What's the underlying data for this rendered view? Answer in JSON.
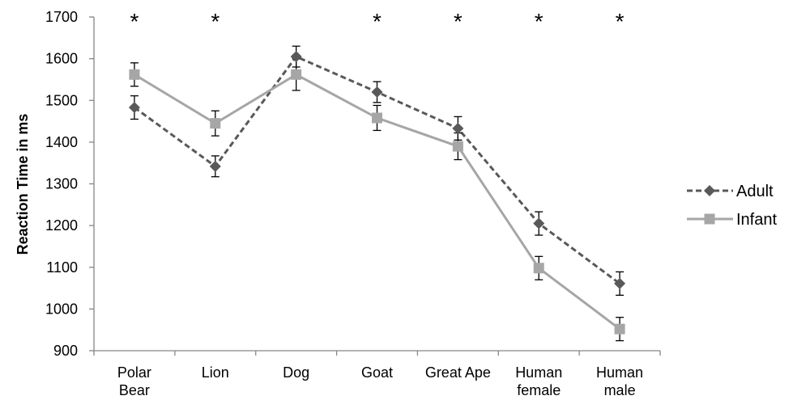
{
  "chart_data": {
    "type": "line",
    "title": "",
    "xlabel": "",
    "ylabel": "Reaction Time in ms",
    "ylim": [
      900,
      1700
    ],
    "yticks": [
      900,
      1000,
      1100,
      1200,
      1300,
      1400,
      1500,
      1600,
      1700
    ],
    "categories": [
      "Polar\nBear",
      "Lion",
      "Dog",
      "Goat",
      "Great Ape",
      "Human\nfemale",
      "Human\nmale"
    ],
    "significance": [
      "*",
      "*",
      "",
      "*",
      "*",
      "*",
      "*"
    ],
    "legend_position": "right",
    "grid": false,
    "series": [
      {
        "name": "Adult",
        "values": [
          1483,
          1342,
          1605,
          1520,
          1433,
          1205,
          1061
        ],
        "errors": [
          28,
          25,
          25,
          25,
          28,
          28,
          28
        ],
        "color": "#595959",
        "dash": "dashed",
        "marker": "diamond"
      },
      {
        "name": "Infant",
        "values": [
          1562,
          1445,
          1562,
          1458,
          1390,
          1098,
          952
        ],
        "errors": [
          28,
          30,
          38,
          30,
          32,
          28,
          28
        ],
        "color": "#a6a6a6",
        "dash": "solid",
        "marker": "square"
      }
    ]
  }
}
